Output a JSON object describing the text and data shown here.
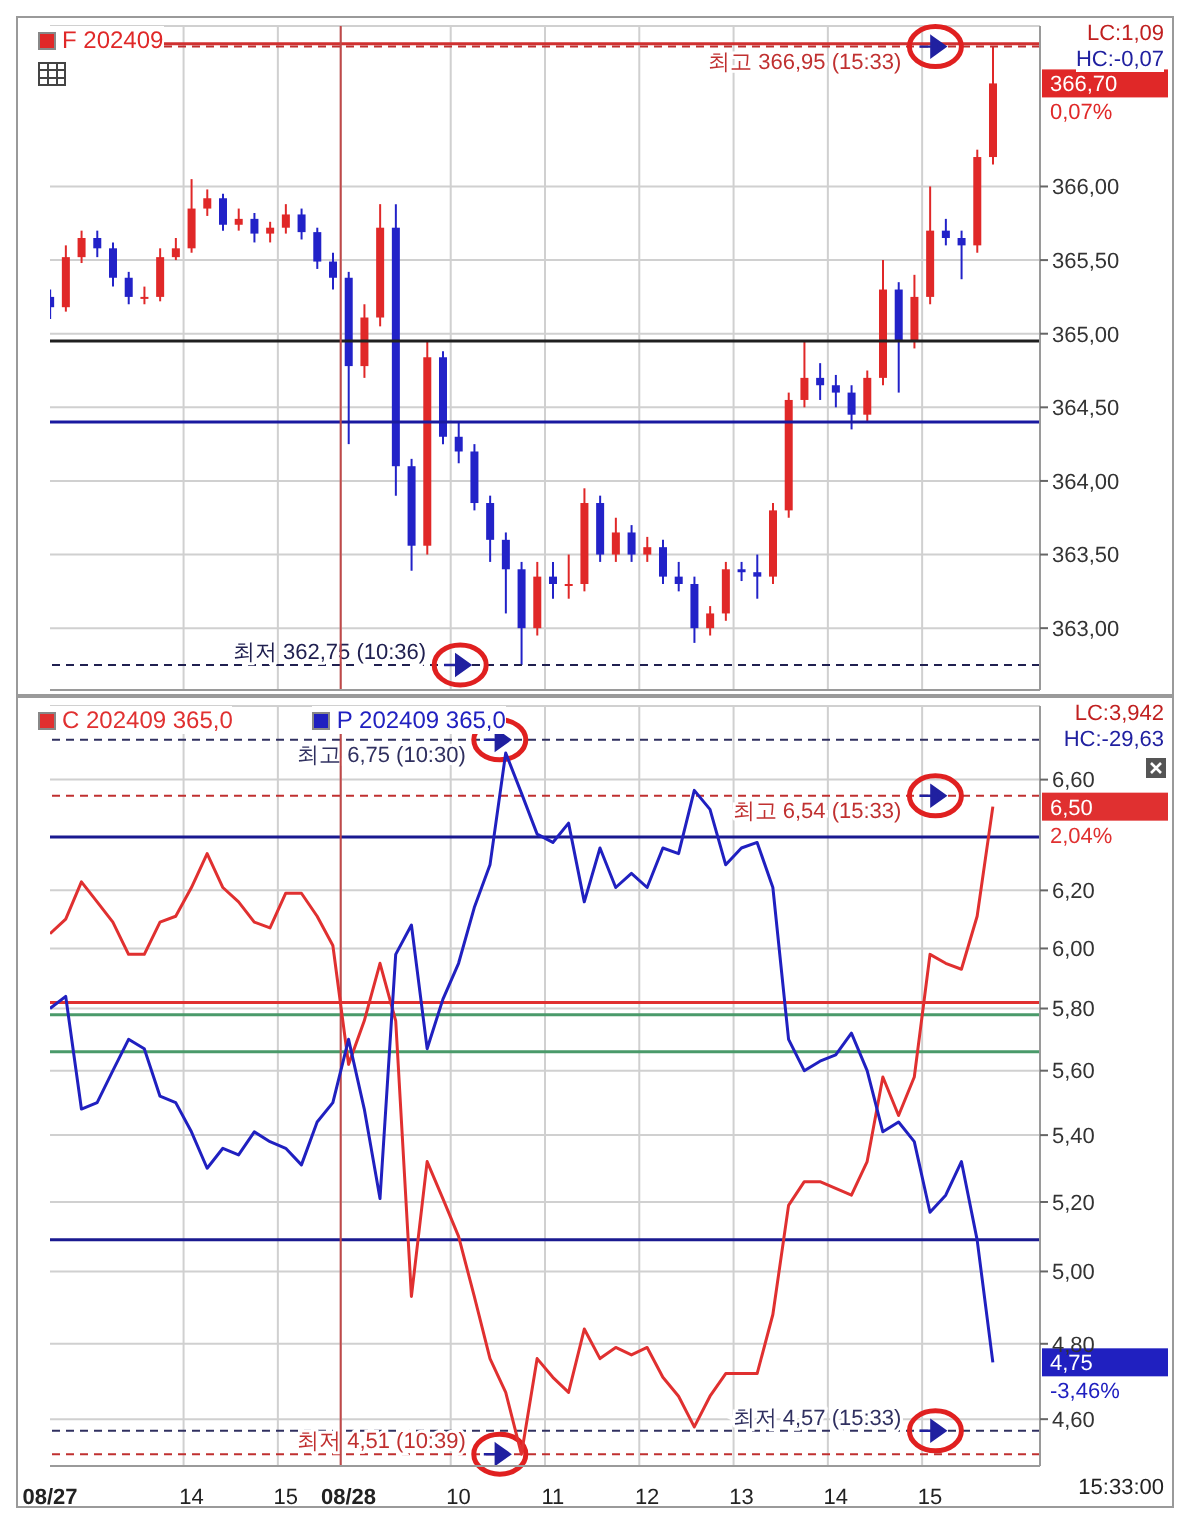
{
  "chart_data": [
    {
      "type": "candlestick",
      "legend": "top left",
      "grid": true,
      "tick_labels": "y",
      "categories": [
        "08/27",
        null,
        null,
        null,
        null,
        null,
        null,
        null,
        null,
        "14",
        null,
        null,
        null,
        null,
        null,
        "15",
        null,
        null,
        null,
        "08/28",
        null,
        null,
        null,
        null,
        null,
        null,
        "10",
        null,
        null,
        null,
        null,
        null,
        "11",
        null,
        null,
        null,
        null,
        null,
        "12",
        null,
        null,
        null,
        null,
        null,
        "13",
        null,
        null,
        null,
        null,
        null,
        "14",
        null,
        null,
        null,
        null,
        null,
        "15",
        null,
        null,
        null,
        null
      ],
      "ylim": [
        362.58,
        367.09
      ],
      "yticks": [
        {
          "value": 363,
          "label": "363,00"
        },
        {
          "value": 363.5,
          "label": "363,50"
        },
        {
          "value": 364,
          "label": "364,00"
        },
        {
          "value": 364.5,
          "label": "364,50"
        },
        {
          "value": 365,
          "label": "365,00"
        },
        {
          "value": 365.5,
          "label": "365,50"
        },
        {
          "value": 366,
          "label": "366,00"
        }
      ],
      "series": [
        {
          "name": "F 202409",
          "color": "#e02828",
          "ohlc": [
            [
              365.25,
              365.3,
              365.1,
              365.18
            ],
            [
              365.18,
              365.6,
              365.15,
              365.52
            ],
            [
              365.52,
              365.7,
              365.48,
              365.65
            ],
            [
              365.65,
              365.7,
              365.52,
              365.58
            ],
            [
              365.58,
              365.62,
              365.32,
              365.38
            ],
            [
              365.38,
              365.42,
              365.2,
              365.25
            ],
            [
              365.25,
              365.32,
              365.2,
              365.25
            ],
            [
              365.25,
              365.58,
              365.22,
              365.52
            ],
            [
              365.52,
              365.65,
              365.5,
              365.58
            ],
            [
              365.58,
              366.05,
              365.55,
              365.85
            ],
            [
              365.85,
              365.98,
              365.8,
              365.92
            ],
            [
              365.92,
              365.95,
              365.7,
              365.74
            ],
            [
              365.74,
              365.85,
              365.7,
              365.78
            ],
            [
              365.78,
              365.82,
              365.62,
              365.68
            ],
            [
              365.68,
              365.76,
              365.62,
              365.72
            ],
            [
              365.72,
              365.88,
              365.68,
              365.81
            ],
            [
              365.81,
              365.85,
              365.64,
              365.69
            ],
            [
              365.69,
              365.72,
              365.44,
              365.49
            ],
            [
              365.49,
              365.55,
              365.3,
              365.38
            ],
            [
              365.38,
              365.42,
              364.25,
              364.78
            ],
            [
              364.78,
              365.2,
              364.7,
              365.11
            ],
            [
              365.11,
              365.88,
              365.05,
              365.72
            ],
            [
              365.72,
              365.88,
              363.9,
              364.1
            ],
            [
              364.1,
              364.15,
              363.39,
              363.56
            ],
            [
              363.56,
              364.95,
              363.5,
              364.84
            ],
            [
              364.84,
              364.88,
              364.25,
              364.3
            ],
            [
              364.3,
              364.4,
              364.12,
              364.2
            ],
            [
              364.2,
              364.25,
              363.8,
              363.85
            ],
            [
              363.85,
              363.9,
              363.45,
              363.6
            ],
            [
              363.6,
              363.65,
              363.1,
              363.4
            ],
            [
              363.4,
              363.45,
              362.75,
              363.0
            ],
            [
              363.0,
              363.45,
              362.95,
              363.35
            ],
            [
              363.35,
              363.45,
              363.2,
              363.3
            ],
            [
              363.3,
              363.5,
              363.2,
              363.3
            ],
            [
              363.3,
              363.95,
              363.25,
              363.85
            ],
            [
              363.85,
              363.9,
              363.45,
              363.5
            ],
            [
              363.5,
              363.75,
              363.45,
              363.65
            ],
            [
              363.65,
              363.7,
              363.45,
              363.5
            ],
            [
              363.5,
              363.62,
              363.45,
              363.55
            ],
            [
              363.55,
              363.6,
              363.3,
              363.35
            ],
            [
              363.35,
              363.45,
              363.25,
              363.3
            ],
            [
              363.3,
              363.35,
              362.9,
              363.0
            ],
            [
              363.0,
              363.15,
              362.95,
              363.1
            ],
            [
              363.1,
              363.45,
              363.05,
              363.4
            ],
            [
              363.4,
              363.45,
              363.32,
              363.38
            ],
            [
              363.38,
              363.5,
              363.2,
              363.35
            ],
            [
              363.35,
              363.85,
              363.3,
              363.8
            ],
            [
              363.8,
              364.6,
              363.75,
              364.55
            ],
            [
              364.55,
              364.95,
              364.5,
              364.7
            ],
            [
              364.7,
              364.8,
              364.55,
              364.65
            ],
            [
              364.65,
              364.72,
              364.5,
              364.6
            ],
            [
              364.6,
              364.65,
              364.35,
              364.45
            ],
            [
              364.45,
              364.75,
              364.4,
              364.7
            ],
            [
              364.7,
              365.5,
              364.65,
              365.3
            ],
            [
              365.3,
              365.35,
              364.6,
              364.95
            ],
            [
              364.95,
              365.4,
              364.9,
              365.25
            ],
            [
              365.25,
              366.0,
              365.2,
              365.7
            ],
            [
              365.7,
              365.78,
              365.6,
              365.65
            ],
            [
              365.65,
              365.7,
              365.37,
              365.6
            ],
            [
              365.6,
              366.25,
              365.55,
              366.2
            ],
            [
              366.2,
              366.95,
              366.15,
              366.7
            ]
          ],
          "colors": [
            "#2222c8",
            "#e02828",
            "#e02828",
            "#2222c8",
            "#2222c8",
            "#2222c8",
            "#e02828",
            "#e02828",
            "#e02828",
            "#e02828",
            "#e02828",
            "#2222c8",
            "#e02828",
            "#2222c8",
            "#e02828",
            "#e02828",
            "#2222c8",
            "#2222c8",
            "#2222c8",
            "#2222c8",
            "#e02828",
            "#e02828",
            "#2222c8",
            "#2222c8",
            "#e02828",
            "#2222c8",
            "#2222c8",
            "#2222c8",
            "#2222c8",
            "#2222c8",
            "#2222c8",
            "#e02828",
            "#2222c8",
            "#e02828",
            "#e02828",
            "#2222c8",
            "#e02828",
            "#2222c8",
            "#e02828",
            "#2222c8",
            "#2222c8",
            "#2222c8",
            "#e02828",
            "#e02828",
            "#2222c8",
            "#2222c8",
            "#e02828",
            "#e02828",
            "#e02828",
            "#2222c8",
            "#2222c8",
            "#2222c8",
            "#e02828",
            "#e02828",
            "#2222c8",
            "#e02828",
            "#e02828",
            "#2222c8",
            "#2222c8",
            "#e02828",
            "#e02828"
          ]
        }
      ],
      "ref_lines": [
        {
          "axis": "y",
          "value": 366.97,
          "color": "#d03030",
          "line_style": "solid"
        },
        {
          "axis": "y",
          "value": 366.95,
          "label": "최고 366,95 (15:33)",
          "color": "#c03030",
          "line_style": "dashed"
        },
        {
          "axis": "y",
          "value": 364.95,
          "color": "#202020",
          "line_style": "solid"
        },
        {
          "axis": "y",
          "value": 364.4,
          "color": "#1a1aa0",
          "line_style": "solid"
        },
        {
          "axis": "y",
          "value": 362.75,
          "label": "최저 362,75 (10:36)",
          "color": "#202050",
          "line_style": "dashed"
        },
        {
          "axis": "x",
          "value": "08/28",
          "color": "#c04848",
          "line_style": "solid"
        }
      ],
      "annotations": [
        "LC:1,09",
        "HC:-0,07",
        "366,70",
        "0,07%"
      ]
    },
    {
      "type": "line",
      "legend": "top left",
      "grid": true,
      "log": true,
      "xlabel": "15:33:00",
      "categories": [
        "08/27",
        null,
        null,
        null,
        null,
        null,
        null,
        null,
        null,
        "14",
        null,
        null,
        null,
        null,
        null,
        "15",
        null,
        null,
        null,
        "08/28",
        null,
        null,
        null,
        null,
        null,
        null,
        "10",
        null,
        null,
        null,
        null,
        null,
        "11",
        null,
        null,
        null,
        null,
        null,
        "12",
        null,
        null,
        null,
        null,
        null,
        "13",
        null,
        null,
        null,
        null,
        null,
        "14",
        null,
        null,
        null,
        null,
        null,
        "15",
        null,
        null,
        null,
        null
      ],
      "ylim": [
        4.48,
        6.88
      ],
      "yticks": [
        {
          "value": 4.6,
          "label": "4,60"
        },
        {
          "value": 4.8,
          "label": "4,80"
        },
        {
          "value": 5,
          "label": "5,00"
        },
        {
          "value": 5.2,
          "label": "5,20"
        },
        {
          "value": 5.4,
          "label": "5,40"
        },
        {
          "value": 5.6,
          "label": "5,60"
        },
        {
          "value": 5.8,
          "label": "5,80"
        },
        {
          "value": 6,
          "label": "6,00"
        },
        {
          "value": 6.2,
          "label": "6,20"
        },
        {
          "value": 6.6,
          "label": "6,60"
        }
      ],
      "series": [
        {
          "name": "C 202409 365,0",
          "color": "#e03030",
          "line_style": "solid",
          "values": [
            6.05,
            6.1,
            6.23,
            6.16,
            6.09,
            5.98,
            5.98,
            6.09,
            6.11,
            6.21,
            6.33,
            6.21,
            6.16,
            6.09,
            6.07,
            6.19,
            6.19,
            6.11,
            6.01,
            5.62,
            5.76,
            5.95,
            5.76,
            4.93,
            5.32,
            5.21,
            5.1,
            4.93,
            4.76,
            4.67,
            4.51,
            4.76,
            4.71,
            4.67,
            4.84,
            4.76,
            4.79,
            4.77,
            4.79,
            4.71,
            4.66,
            4.58,
            4.66,
            4.72,
            4.72,
            4.72,
            4.88,
            5.19,
            5.26,
            5.26,
            5.24,
            5.22,
            5.32,
            5.58,
            5.46,
            5.58,
            5.98,
            5.95,
            5.93,
            6.11,
            6.5
          ]
        },
        {
          "name": "P 202409 365,0",
          "color": "#2020c0",
          "line_style": "solid",
          "values": [
            5.8,
            5.84,
            5.48,
            5.5,
            5.6,
            5.7,
            5.67,
            5.52,
            5.5,
            5.41,
            5.3,
            5.36,
            5.34,
            5.41,
            5.38,
            5.36,
            5.31,
            5.44,
            5.5,
            5.7,
            5.48,
            5.21,
            5.98,
            6.08,
            5.67,
            5.83,
            5.95,
            6.14,
            6.29,
            6.7,
            6.55,
            6.4,
            6.37,
            6.44,
            6.16,
            6.35,
            6.21,
            6.26,
            6.21,
            6.35,
            6.33,
            6.56,
            6.49,
            6.29,
            6.35,
            6.37,
            6.21,
            5.7,
            5.6,
            5.63,
            5.65,
            5.72,
            5.6,
            5.41,
            5.44,
            5.38,
            5.17,
            5.22,
            5.32,
            5.09,
            4.75
          ]
        }
      ],
      "ref_lines": [
        {
          "axis": "y",
          "value": 6.75,
          "label": "최고 6,75 (10:30)",
          "color": "#303060",
          "line_style": "dashed"
        },
        {
          "axis": "y",
          "value": 6.54,
          "label": "최고 6,54 (15:33)",
          "color": "#c03030",
          "line_style": "dashed"
        },
        {
          "axis": "y",
          "value": 6.39,
          "color": "#1a1a90",
          "line_style": "solid"
        },
        {
          "axis": "y",
          "value": 5.82,
          "color": "#e03030",
          "line_style": "solid"
        },
        {
          "axis": "y",
          "value": 5.78,
          "color": "#4a9a6a",
          "line_style": "solid"
        },
        {
          "axis": "y",
          "value": 5.66,
          "color": "#4a9a6a",
          "line_style": "solid"
        },
        {
          "axis": "y",
          "value": 5.09,
          "color": "#1a1a90",
          "line_style": "solid"
        },
        {
          "axis": "y",
          "value": 4.57,
          "label": "최저 4,57 (15:33)",
          "color": "#303060",
          "line_style": "dashed"
        },
        {
          "axis": "y",
          "value": 4.51,
          "label": "최저 4,51 (10:39)",
          "color": "#c03030",
          "line_style": "dashed"
        },
        {
          "axis": "x",
          "value": "08/28",
          "color": "#c04848",
          "line_style": "solid"
        }
      ],
      "annotations": [
        "LC:3,942",
        "HC:-29,63",
        "6,50",
        "2,04%",
        "4,75",
        "-3,46%"
      ]
    }
  ]
}
